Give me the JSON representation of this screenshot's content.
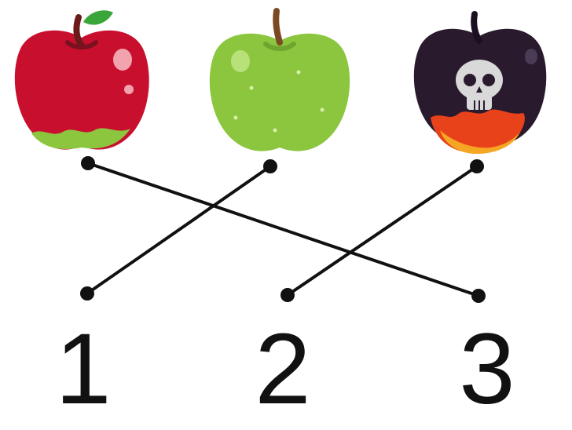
{
  "items": [
    {
      "name": "red-apple",
      "color": "#c8102e"
    },
    {
      "name": "green-apple",
      "color": "#8cc63f"
    },
    {
      "name": "poison-apple",
      "color": "#2a1a2e"
    }
  ],
  "labels": [
    "1",
    "2",
    "3"
  ],
  "connections": [
    {
      "from": "red-apple",
      "to": "3"
    },
    {
      "from": "green-apple",
      "to": "1"
    },
    {
      "from": "poison-apple",
      "to": "2"
    }
  ],
  "colors": {
    "line": "#111111",
    "dot": "#111111",
    "red_skin": "#c8102e",
    "red_bottom": "#8cc63f",
    "green_skin": "#8cc63f",
    "poison_skin": "#2a1a2e",
    "poison_drip": "#e8421a",
    "skull": "#d9d9d9",
    "stem": "#6b3a1e",
    "leaf": "#3aa639"
  }
}
